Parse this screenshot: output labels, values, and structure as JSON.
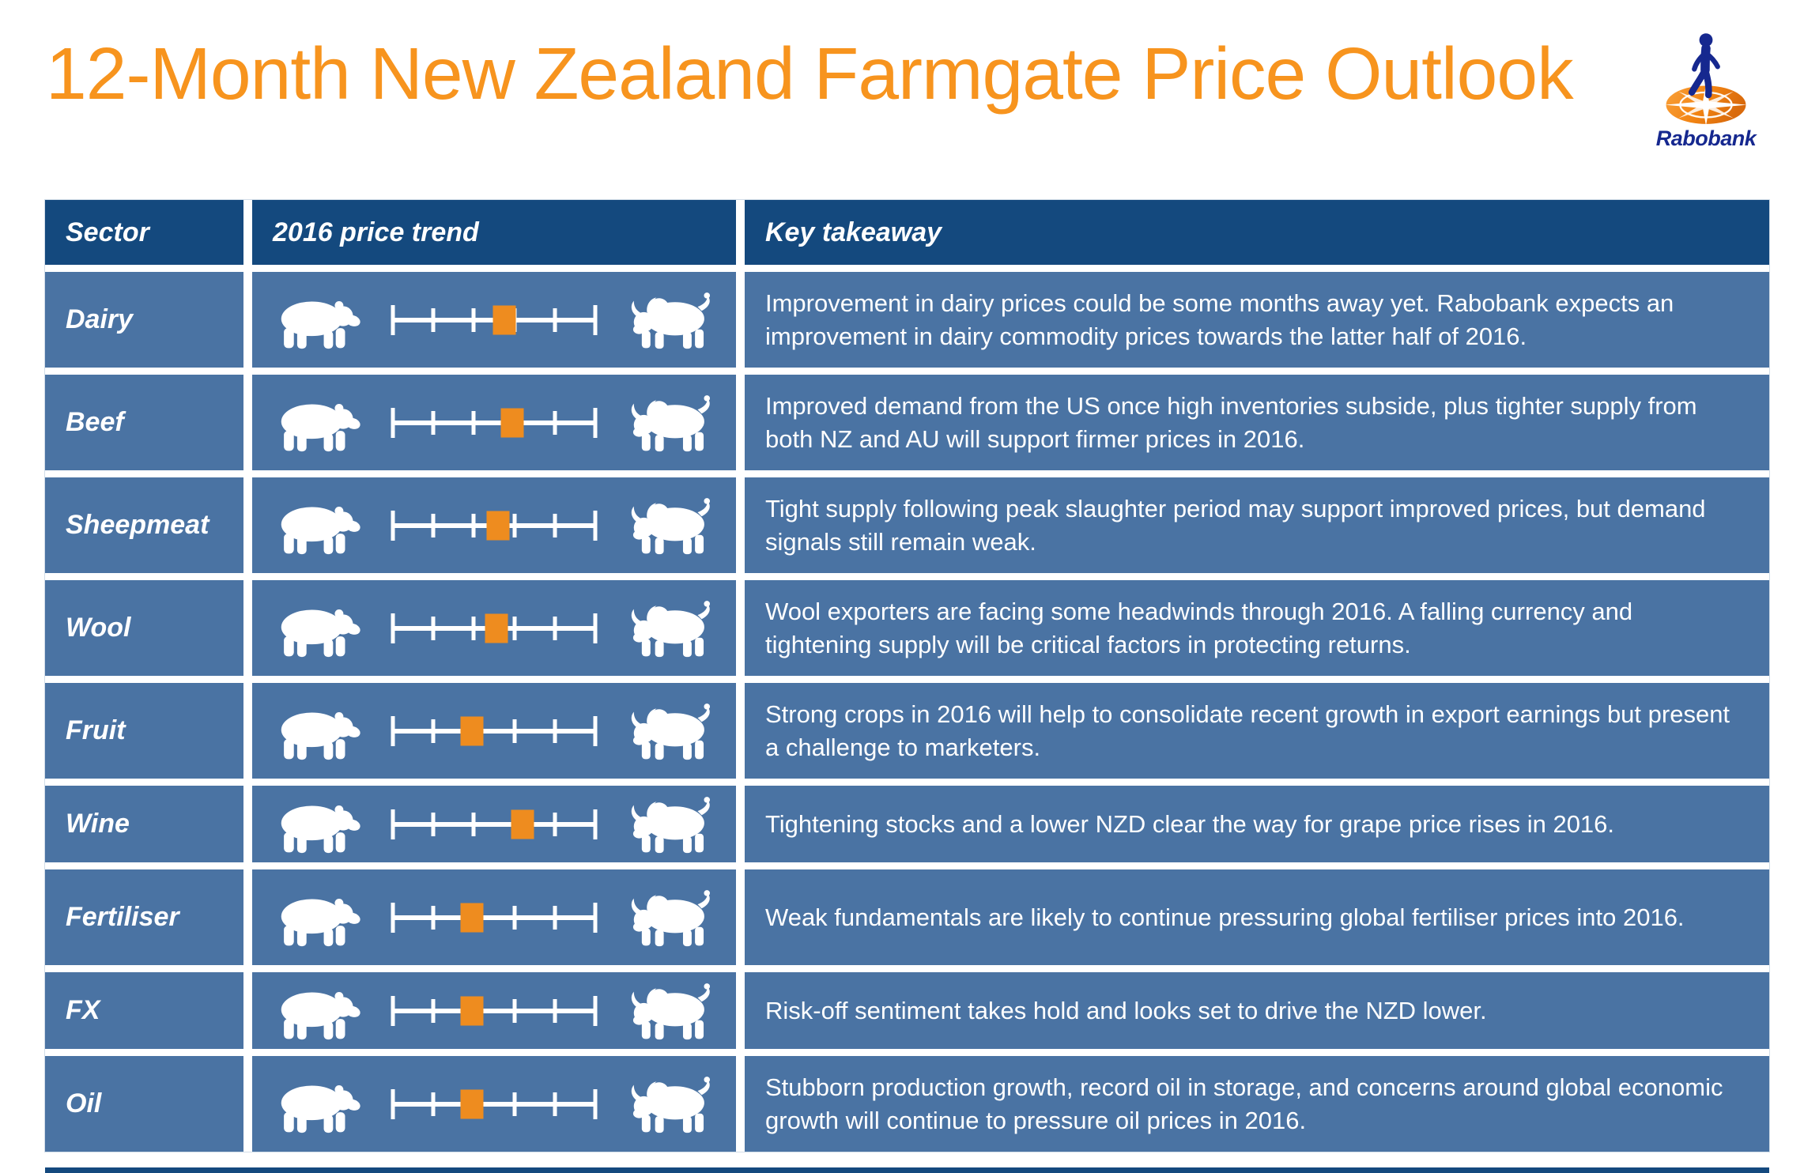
{
  "page": {
    "title": "12-Month New Zealand Farmgate Price Outlook",
    "brand": "Rabobank"
  },
  "colors": {
    "title_orange": "#F7941E",
    "header_navy": "#14497E",
    "row_blue": "#4A73A3",
    "marker_orange": "#EE8C1F",
    "logo_blue": "#16288F",
    "white": "#FFFFFF"
  },
  "table": {
    "columns": [
      "Sector",
      "2016 price trend",
      "Key takeaway"
    ],
    "trend_scale": {
      "left_icon": "bear-icon",
      "right_icon": "bull-icon",
      "min_meaning": "bearish",
      "max_meaning": "bullish",
      "tick_count": 6
    },
    "rows": [
      {
        "sector": "Dairy",
        "trend_position": 0.55,
        "takeaway": "Improvement in dairy prices could be some months away yet. Rabobank expects an improvement in dairy commodity prices towards the latter half of 2016."
      },
      {
        "sector": "Beef",
        "trend_position": 0.59,
        "takeaway": "Improved demand from the US once high inventories subside, plus tighter supply from both NZ and AU will support firmer prices in 2016."
      },
      {
        "sector": "Sheepmeat",
        "trend_position": 0.52,
        "takeaway": "Tight supply following peak slaughter period may support improved prices, but demand signals still remain weak."
      },
      {
        "sector": "Wool",
        "trend_position": 0.51,
        "takeaway": "Wool exporters are facing some headwinds through 2016. A falling currency and tightening supply will be critical factors in protecting returns."
      },
      {
        "sector": "Fruit",
        "trend_position": 0.39,
        "takeaway": "Strong crops in 2016 will help to consolidate recent growth in export earnings but present a challenge to marketers."
      },
      {
        "sector": "Wine",
        "trend_position": 0.64,
        "takeaway": "Tightening stocks and a lower NZD clear the way for grape price rises in 2016."
      },
      {
        "sector": "Fertiliser",
        "trend_position": 0.39,
        "takeaway": "Weak fundamentals are likely to continue pressuring global fertiliser prices into 2016."
      },
      {
        "sector": "FX",
        "trend_position": 0.39,
        "takeaway": "Risk-off sentiment takes hold and looks set to drive the NZD lower."
      },
      {
        "sector": "Oil",
        "trend_position": 0.39,
        "takeaway": "Stubborn production growth, record oil in storage, and concerns around global economic growth will continue to pressure oil prices in 2016."
      }
    ]
  },
  "chart_data": {
    "type": "table",
    "title": "12-Month New Zealand Farmgate Price Outlook",
    "columns": [
      "Sector",
      "2016 price trend",
      "Key takeaway"
    ],
    "trend_axis": {
      "scale": "0 = fully bearish (bear icon), 1 = fully bullish (bull icon)",
      "ticks": 6
    },
    "categories": [
      "Dairy",
      "Beef",
      "Sheepmeat",
      "Wool",
      "Fruit",
      "Wine",
      "Fertiliser",
      "FX",
      "Oil"
    ],
    "values": [
      0.55,
      0.59,
      0.52,
      0.51,
      0.39,
      0.64,
      0.39,
      0.39,
      0.39
    ]
  }
}
